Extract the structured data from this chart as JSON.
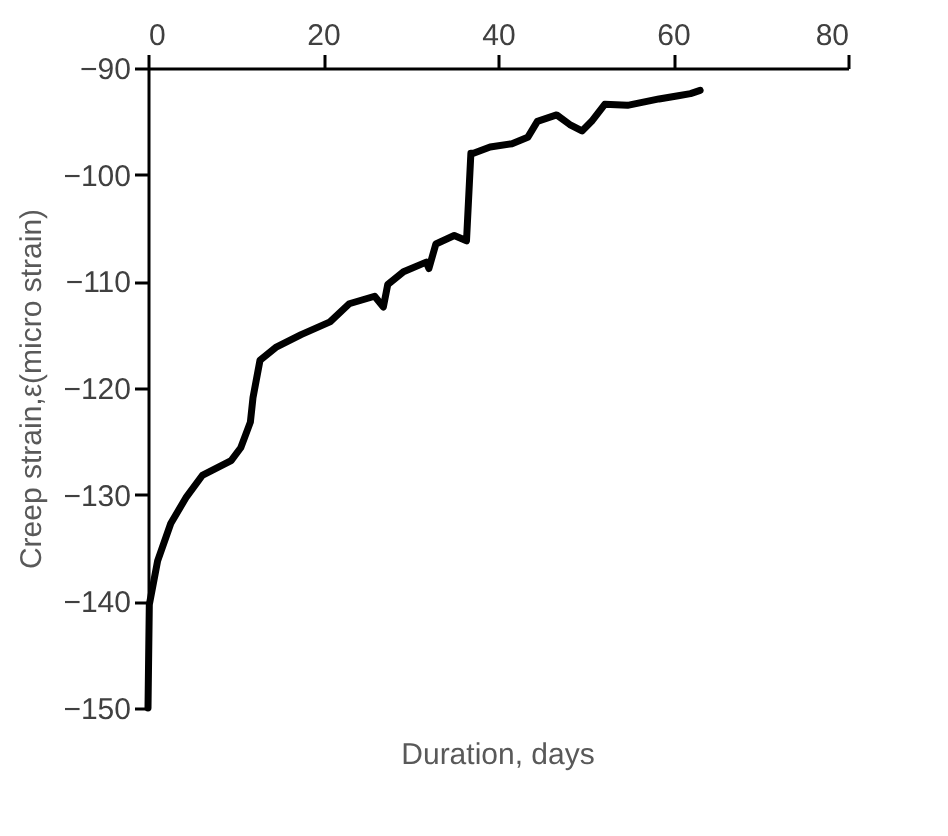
{
  "chart_data": {
    "type": "line",
    "xlabel": "Duration, days",
    "ylabel": "Creep strain,ε(micro strain)",
    "x": [
      0,
      0.15,
      1.1,
      2.6,
      4.4,
      6.2,
      9.5,
      10.6,
      11.7,
      12.0,
      12.8,
      14.6,
      17.5,
      20.8,
      23.0,
      25.9,
      26.9,
      27.4,
      29.2,
      31.8,
      32.1,
      32.9,
      35.0,
      36.4,
      36.9,
      37.2,
      39.1,
      41.6,
      43.4,
      44.5,
      46.7,
      48.2,
      49.6,
      50.7,
      52.2,
      54.8,
      58.4,
      60.6,
      62.0,
      63.1
    ],
    "series": [
      {
        "color": "#000000",
        "values": [
          -150,
          -140.3,
          -136.2,
          -132.7,
          -130.2,
          -128.2,
          -126.8,
          -125.6,
          -123.2,
          -120.9,
          -117.4,
          -116.2,
          -115.0,
          -113.8,
          -112.1,
          -111.4,
          -112.4,
          -110.3,
          -109.1,
          -108.2,
          -108.8,
          -106.5,
          -105.7,
          -106.2,
          -98.0,
          -98.0,
          -97.4,
          -97.1,
          -96.5,
          -95.0,
          -94.4,
          -95.3,
          -95.9,
          -95.0,
          -93.4,
          -93.5,
          -92.9,
          -92.6,
          -92.4,
          -92.1
        ]
      }
    ],
    "xlim": [
      0,
      80
    ],
    "xticks": [
      0,
      20,
      40,
      60,
      80
    ],
    "ylim": [
      -150,
      -90
    ],
    "yticks": [
      -150,
      -140,
      -130,
      -120,
      -110,
      -100,
      -90
    ],
    "grid": false,
    "legend": false,
    "marker": "none",
    "line_style": "solid"
  }
}
